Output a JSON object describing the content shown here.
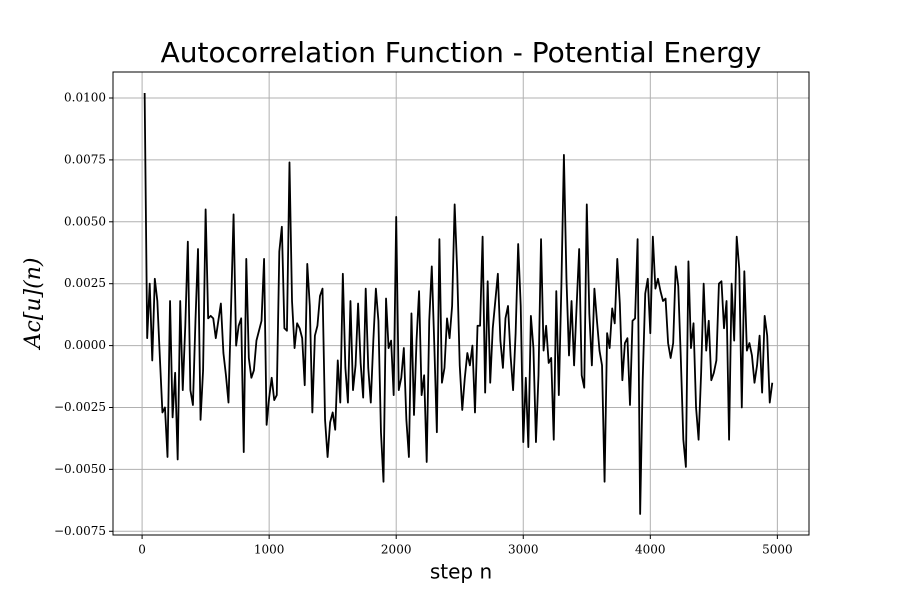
{
  "chart_data": {
    "type": "line",
    "title": "Autocorrelation Function - Potential Energy",
    "xlabel": "step n",
    "ylabel": "Ac[u](n)",
    "color": "#000000",
    "grid": true,
    "xlim": [
      -229,
      5249
    ],
    "ylim": [
      -0.00765,
      0.01105
    ],
    "xticks": [
      0,
      1000,
      2000,
      3000,
      4000,
      5000
    ],
    "yticks": [
      {
        "value": -0.0075,
        "label": "−0.0075"
      },
      {
        "value": -0.005,
        "label": "−0.0050"
      },
      {
        "value": -0.0025,
        "label": "−0.0025"
      },
      {
        "value": 0,
        "label": "0.0000"
      },
      {
        "value": 0.0025,
        "label": "0.0025"
      },
      {
        "value": 0.005,
        "label": "0.0050"
      },
      {
        "value": 0.0075,
        "label": "0.0075"
      },
      {
        "value": 0.01,
        "label": "0.0100"
      }
    ],
    "x": [
      20,
      40,
      60,
      80,
      100,
      120,
      140,
      160,
      180,
      200,
      220,
      240,
      260,
      280,
      300,
      320,
      340,
      360,
      380,
      400,
      420,
      440,
      460,
      480,
      500,
      520,
      540,
      560,
      580,
      600,
      620,
      640,
      660,
      680,
      700,
      720,
      740,
      760,
      780,
      800,
      820,
      840,
      860,
      880,
      900,
      920,
      940,
      960,
      980,
      1000,
      1020,
      1040,
      1060,
      1080,
      1100,
      1120,
      1140,
      1160,
      1180,
      1200,
      1220,
      1240,
      1260,
      1280,
      1300,
      1320,
      1340,
      1360,
      1380,
      1400,
      1420,
      1440,
      1460,
      1480,
      1500,
      1520,
      1540,
      1560,
      1580,
      1600,
      1620,
      1640,
      1660,
      1680,
      1700,
      1720,
      1740,
      1760,
      1780,
      1800,
      1820,
      1840,
      1860,
      1880,
      1900,
      1920,
      1940,
      1960,
      1980,
      2000,
      2020,
      2040,
      2060,
      2080,
      2100,
      2120,
      2140,
      2160,
      2180,
      2200,
      2220,
      2240,
      2260,
      2280,
      2300,
      2320,
      2340,
      2360,
      2380,
      2400,
      2420,
      2440,
      2460,
      2480,
      2500,
      2520,
      2540,
      2560,
      2580,
      2600,
      2620,
      2640,
      2660,
      2680,
      2700,
      2720,
      2740,
      2760,
      2780,
      2800,
      2820,
      2840,
      2860,
      2880,
      2900,
      2920,
      2940,
      2960,
      2980,
      3000,
      3020,
      3040,
      3060,
      3080,
      3100,
      3120,
      3140,
      3160,
      3180,
      3200,
      3220,
      3240,
      3260,
      3280,
      3300,
      3320,
      3340,
      3360,
      3380,
      3400,
      3420,
      3440,
      3460,
      3480,
      3500,
      3520,
      3540,
      3560,
      3580,
      3600,
      3620,
      3640,
      3660,
      3680,
      3700,
      3720,
      3740,
      3760,
      3780,
      3800,
      3820,
      3840,
      3860,
      3880,
      3900,
      3920,
      3940,
      3960,
      3980,
      4000,
      4020,
      4040,
      4060,
      4080,
      4100,
      4120,
      4140,
      4160,
      4180,
      4200,
      4220,
      4240,
      4260,
      4280,
      4300,
      4320,
      4340,
      4360,
      4380,
      4400,
      4420,
      4440,
      4460,
      4480,
      4500,
      4520,
      4540,
      4560,
      4580,
      4600,
      4620,
      4640,
      4660,
      4680,
      4700,
      4720,
      4740,
      4760,
      4780,
      4800,
      4820,
      4840,
      4860,
      4880,
      4900,
      4920,
      4940,
      4960
    ],
    "values": [
      0.0102,
      0.0003,
      0.0025,
      -0.0006,
      0.0027,
      0.0018,
      -0.0005,
      -0.0027,
      -0.0025,
      -0.0045,
      0.0018,
      -0.0029,
      -0.0011,
      -0.0046,
      0.0018,
      -0.0018,
      0.0008,
      0.0042,
      -0.0018,
      -0.0024,
      0.001,
      0.0039,
      -0.003,
      -0.001,
      0.0055,
      0.0011,
      0.0012,
      0.0011,
      0.0003,
      0.001,
      0.0017,
      -0.0003,
      -0.0012,
      -0.0023,
      0.0015,
      0.0053,
      0.0,
      0.0008,
      0.0011,
      -0.0043,
      0.0035,
      -0.0005,
      -0.0013,
      -0.001,
      0.0002,
      0.0006,
      0.001,
      0.0035,
      -0.0032,
      -0.0021,
      -0.0013,
      -0.0022,
      -0.002,
      0.0038,
      0.0048,
      0.0007,
      0.0006,
      0.0074,
      0.0018,
      -0.0001,
      0.0009,
      0.0007,
      0.0003,
      -0.0016,
      0.0033,
      0.0016,
      -0.0027,
      0.0004,
      0.0008,
      0.002,
      0.0023,
      -0.003,
      -0.0045,
      -0.0031,
      -0.0027,
      -0.0034,
      -0.0006,
      -0.0023,
      0.0029,
      -0.0009,
      -0.0023,
      0.0018,
      -0.0018,
      -0.0008,
      0.0017,
      -0.0007,
      -0.0021,
      0.0023,
      -0.0009,
      -0.0023,
      0.0002,
      0.0023,
      0.001,
      -0.0035,
      -0.0055,
      0.0019,
      -0.0001,
      0.0002,
      -0.002,
      0.0052,
      -0.0018,
      -0.0013,
      -0.0001,
      -0.003,
      -0.0045,
      0.0013,
      -0.0028,
      0.0002,
      0.0022,
      -0.002,
      -0.0012,
      -0.0047,
      0.001,
      0.0032,
      0.0,
      -0.0035,
      0.0043,
      -0.0015,
      -0.0009,
      0.0011,
      0.0003,
      0.0016,
      0.0057,
      0.003,
      -0.0008,
      -0.0026,
      -0.0013,
      -0.0003,
      -0.0008,
      0.0,
      -0.0027,
      0.0008,
      0.0008,
      0.0044,
      -0.0019,
      0.0026,
      -0.0015,
      0.0007,
      0.0018,
      0.0029,
      0.0002,
      -0.0009,
      0.0011,
      0.0016,
      -0.0004,
      -0.0018,
      0.0005,
      0.0041,
      0.0016,
      -0.0039,
      -0.0013,
      -0.0041,
      0.0012,
      -0.0001,
      -0.0039,
      -0.0012,
      0.0043,
      -0.0002,
      0.0008,
      -0.0007,
      -0.0005,
      -0.0038,
      0.0022,
      -0.002,
      0.0024,
      0.0077,
      0.0027,
      -0.0004,
      0.0018,
      -0.0008,
      0.0016,
      0.0039,
      -0.0012,
      -0.0017,
      0.0057,
      0.0013,
      -0.0008,
      0.0023,
      0.001,
      -0.0002,
      -0.0008,
      -0.0055,
      0.0005,
      -0.0001,
      0.0015,
      0.0009,
      0.0035,
      0.0017,
      -0.0014,
      0.0001,
      0.0003,
      -0.0024,
      0.001,
      0.0011,
      0.0043,
      -0.0068,
      -0.0014,
      0.0021,
      0.0027,
      0.0005,
      0.0044,
      0.0023,
      0.0027,
      0.0022,
      0.0018,
      0.0019,
      0.0001,
      -0.0005,
      0.0001,
      0.0032,
      0.0024,
      -0.0005,
      -0.0038,
      -0.0049,
      0.0034,
      -0.0001,
      0.0009,
      -0.0025,
      -0.0038,
      -0.0011,
      0.0025,
      -0.0002,
      0.001,
      -0.0014,
      -0.0011,
      -0.0006,
      0.0025,
      0.0026,
      0.0007,
      0.0018,
      -0.0038,
      0.0025,
      0.0002,
      0.0044,
      0.0031,
      -0.0025,
      0.003,
      -0.0002,
      0.0001,
      -0.0004,
      -0.0015,
      -0.0008,
      0.0004,
      -0.0019,
      0.0012,
      0.0004,
      -0.0023,
      -0.0015
    ]
  }
}
